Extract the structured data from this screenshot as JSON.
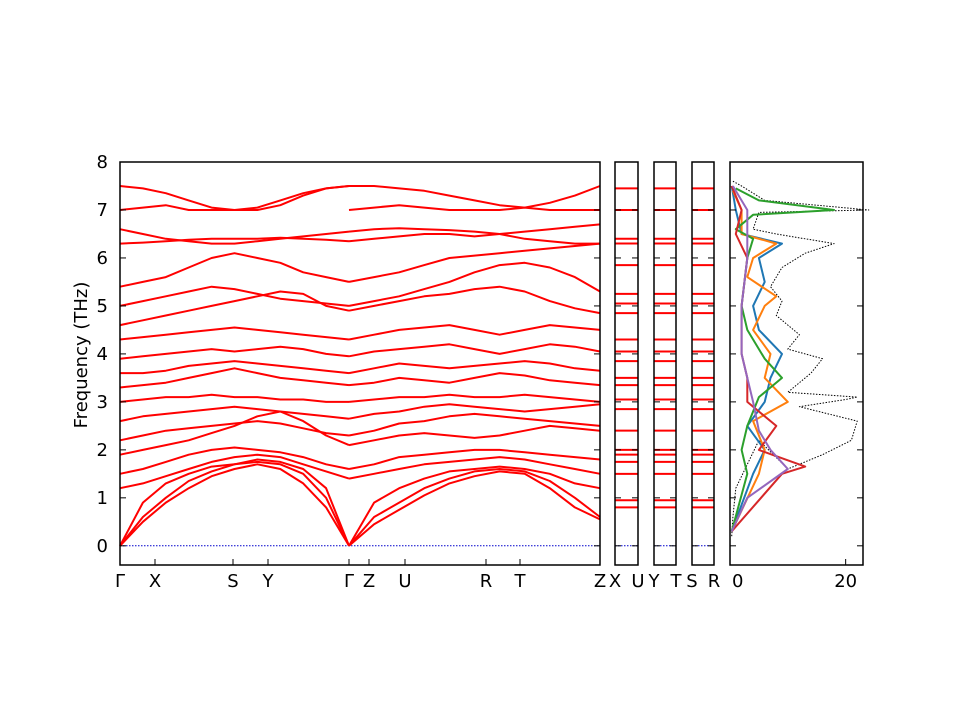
{
  "chart_data": {
    "type": "line",
    "ylabel": "Frequency (THz)",
    "ylim": [
      -0.4,
      8.0
    ],
    "y_ticks": [
      "0",
      "1",
      "2",
      "3",
      "4",
      "5",
      "6",
      "7",
      "8"
    ],
    "band_color": "#ff0000",
    "zero_line_color": "#0000cc",
    "panels": [
      {
        "id": "main",
        "labels": [
          "Γ",
          "X",
          "S",
          "Y",
          "Γ",
          "Z",
          "U",
          "R",
          "T",
          "Z"
        ]
      },
      {
        "id": "xu",
        "labels": [
          "X",
          "U"
        ]
      },
      {
        "id": "yt",
        "labels": [
          "Y",
          "T"
        ]
      },
      {
        "id": "sr",
        "labels": [
          "S",
          "R"
        ]
      }
    ],
    "bands_segment_1": {
      "x": [
        0,
        0.05,
        0.1,
        0.15,
        0.2,
        0.25,
        0.3,
        0.35,
        0.4,
        0.45,
        0.5
      ],
      "series": [
        {
          "values": [
            0.0,
            0.5,
            0.9,
            1.2,
            1.45,
            1.6,
            1.7,
            1.6,
            1.3,
            0.8,
            0.0
          ]
        },
        {
          "values": [
            0.0,
            0.6,
            1.0,
            1.35,
            1.55,
            1.7,
            1.75,
            1.7,
            1.5,
            1.0,
            0.0
          ]
        },
        {
          "values": [
            0.0,
            0.9,
            1.3,
            1.5,
            1.65,
            1.7,
            1.8,
            1.75,
            1.6,
            1.2,
            0.0
          ]
        },
        {
          "values": [
            1.2,
            1.3,
            1.45,
            1.6,
            1.75,
            1.85,
            1.9,
            1.85,
            1.7,
            1.55,
            1.4
          ]
        },
        {
          "values": [
            1.5,
            1.6,
            1.75,
            1.9,
            2.0,
            2.05,
            2.0,
            1.95,
            1.85,
            1.7,
            1.6
          ]
        },
        {
          "values": [
            1.9,
            2.0,
            2.1,
            2.2,
            2.35,
            2.5,
            2.7,
            2.8,
            2.6,
            2.3,
            2.1
          ]
        },
        {
          "values": [
            2.2,
            2.3,
            2.4,
            2.45,
            2.5,
            2.55,
            2.6,
            2.55,
            2.45,
            2.35,
            2.3
          ]
        },
        {
          "values": [
            2.6,
            2.7,
            2.75,
            2.8,
            2.85,
            2.9,
            2.85,
            2.8,
            2.75,
            2.7,
            2.65
          ]
        },
        {
          "values": [
            3.0,
            3.05,
            3.1,
            3.1,
            3.15,
            3.1,
            3.1,
            3.05,
            3.05,
            3.0,
            3.0
          ]
        },
        {
          "values": [
            3.3,
            3.35,
            3.4,
            3.5,
            3.6,
            3.7,
            3.6,
            3.5,
            3.45,
            3.4,
            3.35
          ]
        },
        {
          "values": [
            3.6,
            3.6,
            3.65,
            3.75,
            3.8,
            3.85,
            3.8,
            3.75,
            3.7,
            3.65,
            3.6
          ]
        },
        {
          "values": [
            3.9,
            3.95,
            4.0,
            4.05,
            4.1,
            4.05,
            4.1,
            4.15,
            4.1,
            4.0,
            3.95
          ]
        },
        {
          "values": [
            4.3,
            4.35,
            4.4,
            4.45,
            4.5,
            4.55,
            4.5,
            4.45,
            4.4,
            4.35,
            4.3
          ]
        },
        {
          "values": [
            4.6,
            4.7,
            4.8,
            4.9,
            5.0,
            5.1,
            5.2,
            5.3,
            5.25,
            5.0,
            4.9
          ]
        },
        {
          "values": [
            5.0,
            5.1,
            5.2,
            5.3,
            5.4,
            5.35,
            5.25,
            5.15,
            5.1,
            5.05,
            5.0
          ]
        },
        {
          "values": [
            5.4,
            5.5,
            5.6,
            5.8,
            6.0,
            6.1,
            6.0,
            5.9,
            5.7,
            5.6,
            5.5
          ]
        },
        {
          "values": [
            6.3,
            6.32,
            6.35,
            6.38,
            6.4,
            6.4,
            6.4,
            6.42,
            6.4,
            6.38,
            6.35
          ]
        },
        {
          "values": [
            6.6,
            6.5,
            6.4,
            6.35,
            6.3,
            6.3,
            6.35,
            6.4,
            6.45,
            6.5,
            6.55
          ]
        },
        {
          "values": [
            7.0,
            7.05,
            7.1,
            7.0,
            7.0,
            7.0,
            7.0,
            7.1,
            7.3,
            7.45,
            7.5
          ]
        },
        {
          "values": [
            7.5,
            7.45,
            7.35,
            7.2,
            7.05,
            7.0,
            7.05,
            7.2,
            7.35,
            7.45,
            7.5
          ]
        }
      ]
    },
    "bands_segment_2": {
      "x": [
        0.5,
        0.55,
        0.6,
        0.65,
        0.7,
        0.75,
        0.8,
        0.85,
        0.9,
        0.95,
        1.0
      ],
      "series": [
        {
          "values": [
            0.0,
            0.45,
            0.75,
            1.05,
            1.3,
            1.45,
            1.55,
            1.5,
            1.2,
            0.8,
            0.55
          ]
        },
        {
          "values": [
            0.0,
            0.6,
            0.9,
            1.2,
            1.4,
            1.55,
            1.6,
            1.55,
            1.35,
            1.0,
            0.6
          ]
        },
        {
          "values": [
            0.0,
            0.9,
            1.2,
            1.4,
            1.55,
            1.6,
            1.65,
            1.6,
            1.5,
            1.3,
            1.2
          ]
        },
        {
          "values": [
            1.4,
            1.5,
            1.6,
            1.7,
            1.75,
            1.8,
            1.85,
            1.8,
            1.7,
            1.6,
            1.5
          ]
        },
        {
          "values": [
            1.6,
            1.7,
            1.85,
            1.9,
            1.95,
            2.0,
            2.0,
            1.95,
            1.9,
            1.85,
            1.8
          ]
        },
        {
          "values": [
            2.1,
            2.2,
            2.3,
            2.35,
            2.3,
            2.25,
            2.3,
            2.4,
            2.5,
            2.45,
            2.4
          ]
        },
        {
          "values": [
            2.3,
            2.4,
            2.55,
            2.6,
            2.7,
            2.75,
            2.7,
            2.65,
            2.6,
            2.55,
            2.5
          ]
        },
        {
          "values": [
            2.65,
            2.75,
            2.8,
            2.9,
            2.95,
            2.9,
            2.85,
            2.8,
            2.85,
            2.9,
            2.95
          ]
        },
        {
          "values": [
            3.0,
            3.05,
            3.1,
            3.1,
            3.15,
            3.1,
            3.1,
            3.15,
            3.1,
            3.05,
            3.0
          ]
        },
        {
          "values": [
            3.35,
            3.4,
            3.5,
            3.45,
            3.4,
            3.5,
            3.6,
            3.55,
            3.45,
            3.4,
            3.35
          ]
        },
        {
          "values": [
            3.6,
            3.7,
            3.8,
            3.75,
            3.7,
            3.75,
            3.8,
            3.85,
            3.8,
            3.7,
            3.65
          ]
        },
        {
          "values": [
            3.95,
            4.05,
            4.1,
            4.15,
            4.2,
            4.1,
            4.0,
            4.1,
            4.2,
            4.15,
            4.05
          ]
        },
        {
          "values": [
            4.3,
            4.4,
            4.5,
            4.55,
            4.6,
            4.5,
            4.4,
            4.5,
            4.6,
            4.55,
            4.5
          ]
        },
        {
          "values": [
            4.9,
            5.0,
            5.1,
            5.2,
            5.25,
            5.35,
            5.4,
            5.3,
            5.1,
            4.95,
            4.85
          ]
        },
        {
          "values": [
            5.0,
            5.1,
            5.2,
            5.35,
            5.5,
            5.7,
            5.85,
            5.9,
            5.8,
            5.6,
            5.3
          ]
        },
        {
          "values": [
            5.5,
            5.6,
            5.7,
            5.85,
            6.0,
            6.05,
            6.1,
            6.15,
            6.2,
            6.25,
            6.3
          ]
        },
        {
          "values": [
            6.35,
            6.4,
            6.45,
            6.5,
            6.5,
            6.45,
            6.5,
            6.55,
            6.6,
            6.65,
            6.7
          ]
        },
        {
          "values": [
            6.55,
            6.6,
            6.62,
            6.6,
            6.58,
            6.55,
            6.5,
            6.4,
            6.35,
            6.3,
            6.3
          ]
        },
        {
          "values": [
            7.0,
            7.05,
            7.1,
            7.05,
            7.0,
            7.0,
            7.0,
            7.05,
            7.15,
            7.3,
            7.5
          ]
        },
        {
          "values": [
            7.5,
            7.5,
            7.45,
            7.4,
            7.3,
            7.2,
            7.1,
            7.05,
            7.0,
            7.0,
            7.0
          ]
        }
      ]
    },
    "short_panel_levels": [
      0.8,
      0.95,
      1.5,
      1.75,
      1.9,
      2.0,
      2.4,
      2.85,
      3.05,
      3.35,
      3.5,
      3.85,
      4.05,
      4.3,
      4.85,
      5.05,
      5.25,
      5.85,
      6.3,
      6.4,
      7.0,
      7.45
    ],
    "dos_panel": {
      "x_ticks": [
        "0",
        "20"
      ],
      "xlim": [
        0,
        23
      ],
      "series": [
        {
          "color": "#000000",
          "style": "dotted",
          "values": [
            [
              0.2,
              0.3
            ],
            [
              0.6,
              0.5
            ],
            [
              1.2,
              1
            ],
            [
              2.2,
              5
            ],
            [
              1.6,
              10
            ],
            [
              1.9,
              16
            ],
            [
              2.2,
              21
            ],
            [
              2.6,
              22
            ],
            [
              2.9,
              12
            ],
            [
              3.05,
              20
            ],
            [
              3.1,
              22
            ],
            [
              3.2,
              10
            ],
            [
              3.6,
              14
            ],
            [
              3.9,
              16
            ],
            [
              4.1,
              10
            ],
            [
              4.4,
              12
            ],
            [
              4.8,
              8
            ],
            [
              5.1,
              9
            ],
            [
              5.4,
              7
            ],
            [
              5.8,
              9
            ],
            [
              6.1,
              13
            ],
            [
              6.3,
              18
            ],
            [
              6.5,
              8
            ],
            [
              6.6,
              4
            ],
            [
              6.95,
              5
            ],
            [
              7.0,
              24
            ],
            [
              7.2,
              6
            ],
            [
              7.5,
              2
            ],
            [
              7.6,
              0.5
            ]
          ]
        },
        {
          "color": "#1f77b4",
          "style": "solid",
          "values": [
            [
              0.3,
              0.3
            ],
            [
              1.5,
              4
            ],
            [
              2.0,
              6
            ],
            [
              2.5,
              3
            ],
            [
              3.0,
              6
            ],
            [
              3.5,
              7
            ],
            [
              4.0,
              9
            ],
            [
              4.5,
              5
            ],
            [
              5.0,
              4
            ],
            [
              5.5,
              6
            ],
            [
              6.0,
              5
            ],
            [
              6.3,
              9
            ],
            [
              6.5,
              2
            ],
            [
              7.0,
              1
            ],
            [
              7.5,
              0.3
            ]
          ]
        },
        {
          "color": "#ff7f0e",
          "style": "solid",
          "values": [
            [
              0.3,
              0.3
            ],
            [
              1.5,
              5
            ],
            [
              2.0,
              6
            ],
            [
              2.6,
              4
            ],
            [
              3.0,
              10
            ],
            [
              3.5,
              6
            ],
            [
              4.0,
              7
            ],
            [
              4.5,
              4
            ],
            [
              5.0,
              6
            ],
            [
              5.2,
              8
            ],
            [
              5.6,
              3
            ],
            [
              6.0,
              4
            ],
            [
              6.3,
              8
            ],
            [
              6.5,
              2
            ],
            [
              7.0,
              2
            ],
            [
              7.4,
              0.5
            ]
          ]
        },
        {
          "color": "#2ca02c",
          "style": "solid",
          "values": [
            [
              0.3,
              0.3
            ],
            [
              1.5,
              3
            ],
            [
              2.0,
              2
            ],
            [
              2.5,
              3
            ],
            [
              3.1,
              5
            ],
            [
              3.5,
              9
            ],
            [
              3.9,
              6
            ],
            [
              4.5,
              3
            ],
            [
              5.0,
              2
            ],
            [
              6.0,
              3
            ],
            [
              6.4,
              4
            ],
            [
              6.6,
              1
            ],
            [
              6.9,
              4
            ],
            [
              7.0,
              18
            ],
            [
              7.2,
              5
            ],
            [
              7.45,
              1
            ]
          ]
        },
        {
          "color": "#d62728",
          "style": "solid",
          "values": [
            [
              0.3,
              0.3
            ],
            [
              1.5,
              9
            ],
            [
              1.65,
              13
            ],
            [
              2.0,
              5
            ],
            [
              2.5,
              8
            ],
            [
              3.0,
              3
            ],
            [
              3.5,
              3
            ],
            [
              4.0,
              2
            ],
            [
              5.0,
              2
            ],
            [
              6.0,
              3
            ],
            [
              6.5,
              1
            ],
            [
              7.0,
              2
            ],
            [
              7.5,
              0.3
            ]
          ]
        },
        {
          "color": "#9467bd",
          "style": "solid",
          "values": [
            [
              0.3,
              0.3
            ],
            [
              1.0,
              3
            ],
            [
              1.6,
              10
            ],
            [
              2.0,
              7
            ],
            [
              2.4,
              5
            ],
            [
              3.0,
              4
            ],
            [
              3.5,
              3
            ],
            [
              4.0,
              2
            ],
            [
              5.0,
              2
            ],
            [
              6.0,
              3
            ],
            [
              7.0,
              3
            ],
            [
              7.5,
              0.5
            ]
          ]
        }
      ]
    }
  }
}
